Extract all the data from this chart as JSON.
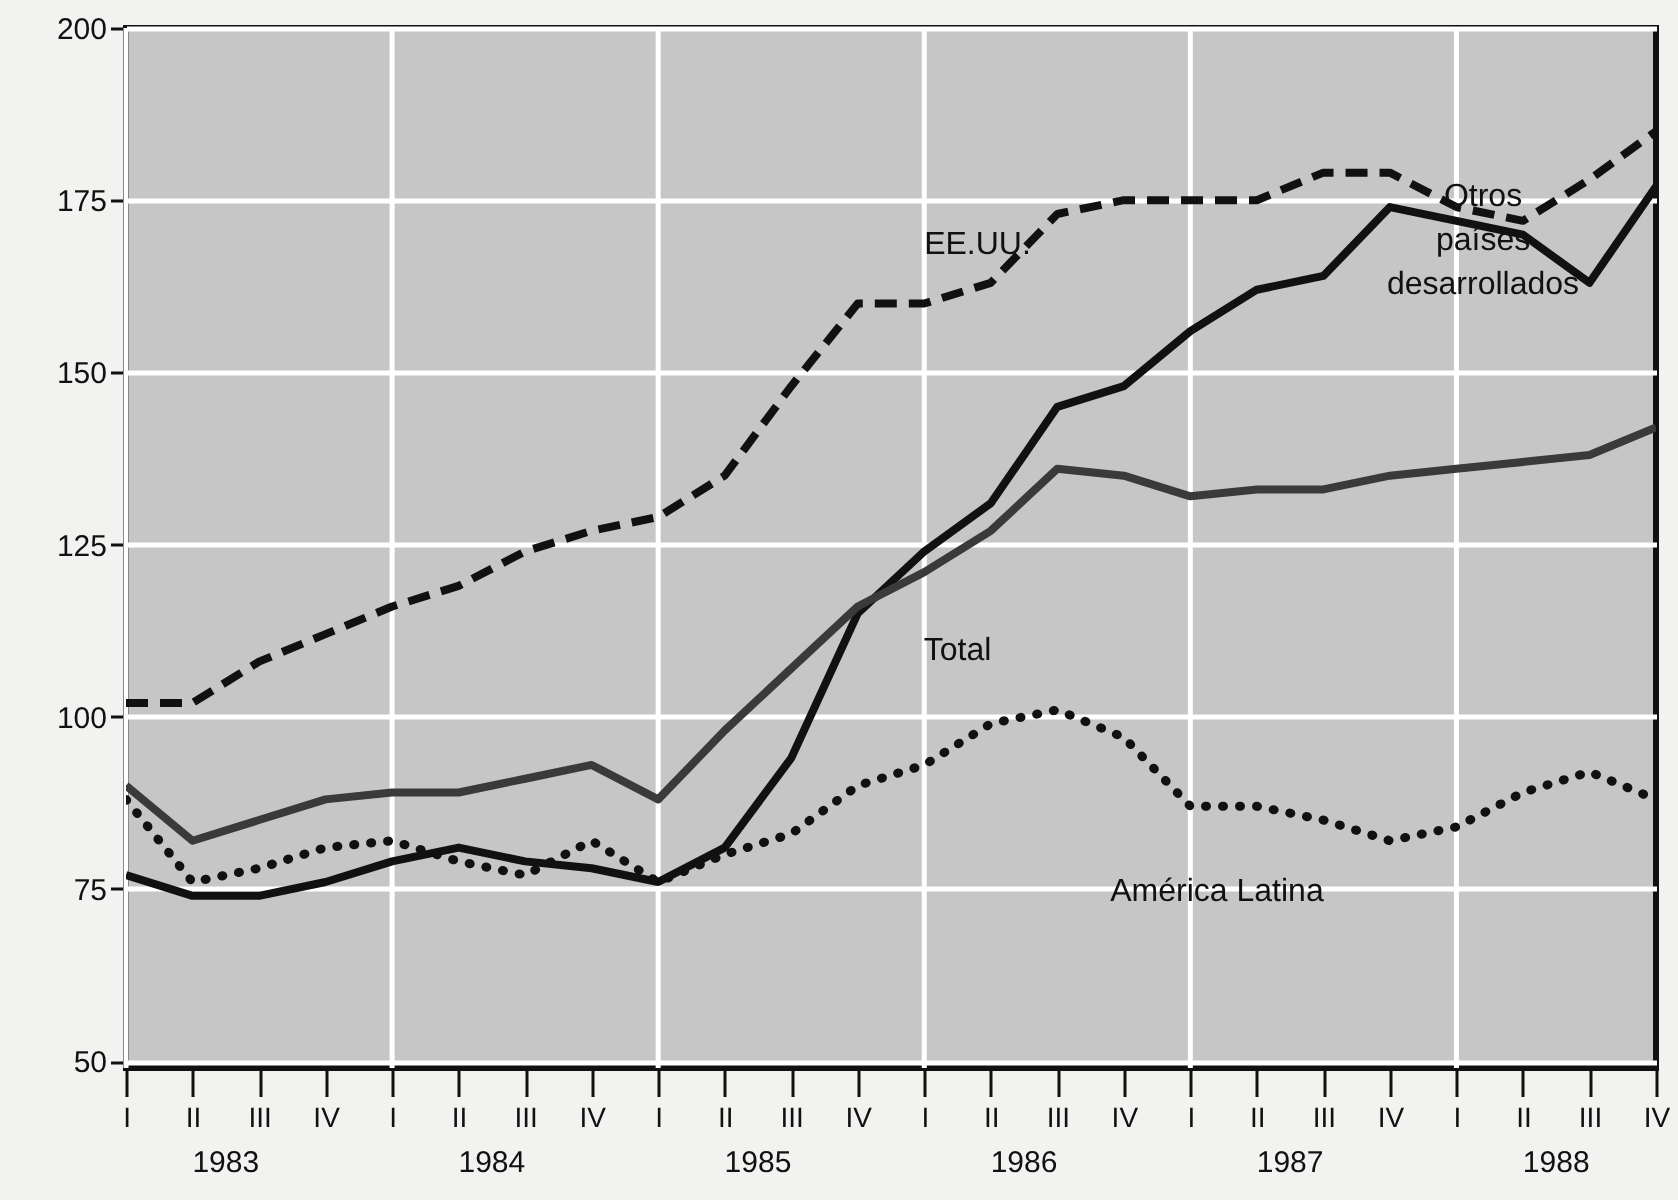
{
  "chart_data": {
    "type": "line",
    "categories": [
      "I",
      "II",
      "III",
      "IV",
      "I",
      "II",
      "III",
      "IV",
      "I",
      "II",
      "III",
      "IV",
      "I",
      "II",
      "III",
      "IV",
      "I",
      "II",
      "III",
      "IV",
      "I",
      "II",
      "III",
      "IV"
    ],
    "ylim": [
      49,
      200
    ],
    "yticks": [
      50,
      75,
      100,
      125,
      150,
      175,
      200
    ],
    "grid": true,
    "legend": false,
    "marker": "none",
    "annotations": [
      "1983",
      "1984",
      "1985",
      "1986",
      "1987",
      "1988"
    ],
    "series": [
      {
        "name": "EE.UU.",
        "color": "#111111",
        "line_style": "dashed",
        "values": [
          102,
          102,
          108,
          112,
          116,
          119,
          124,
          127,
          129,
          135,
          148,
          160,
          160,
          163,
          173,
          175,
          175,
          175,
          179,
          179,
          174,
          172,
          178,
          185
        ]
      },
      {
        "name": "Otros\npaíses\ndesarrollados",
        "color": "#111111",
        "line_style": "solid",
        "values": [
          77,
          74,
          74,
          76,
          79,
          81,
          79,
          78,
          76,
          81,
          94,
          115,
          124,
          131,
          145,
          148,
          156,
          162,
          164,
          174,
          172,
          170,
          163,
          177
        ]
      },
      {
        "name": "Total",
        "color": "#3a3a3a",
        "line_style": "solid",
        "values": [
          90,
          82,
          85,
          88,
          89,
          89,
          91,
          93,
          88,
          98,
          107,
          116,
          121,
          127,
          136,
          135,
          132,
          133,
          133,
          135,
          136,
          137,
          138,
          142
        ]
      },
      {
        "name": "América Latina",
        "color": "#111111",
        "line_style": "dotted",
        "values": [
          88,
          76,
          78,
          81,
          82,
          79,
          77,
          82,
          76,
          80,
          83,
          90,
          93,
          99,
          101,
          97,
          87,
          87,
          85,
          82,
          84,
          89,
          92,
          88
        ]
      }
    ]
  }
}
